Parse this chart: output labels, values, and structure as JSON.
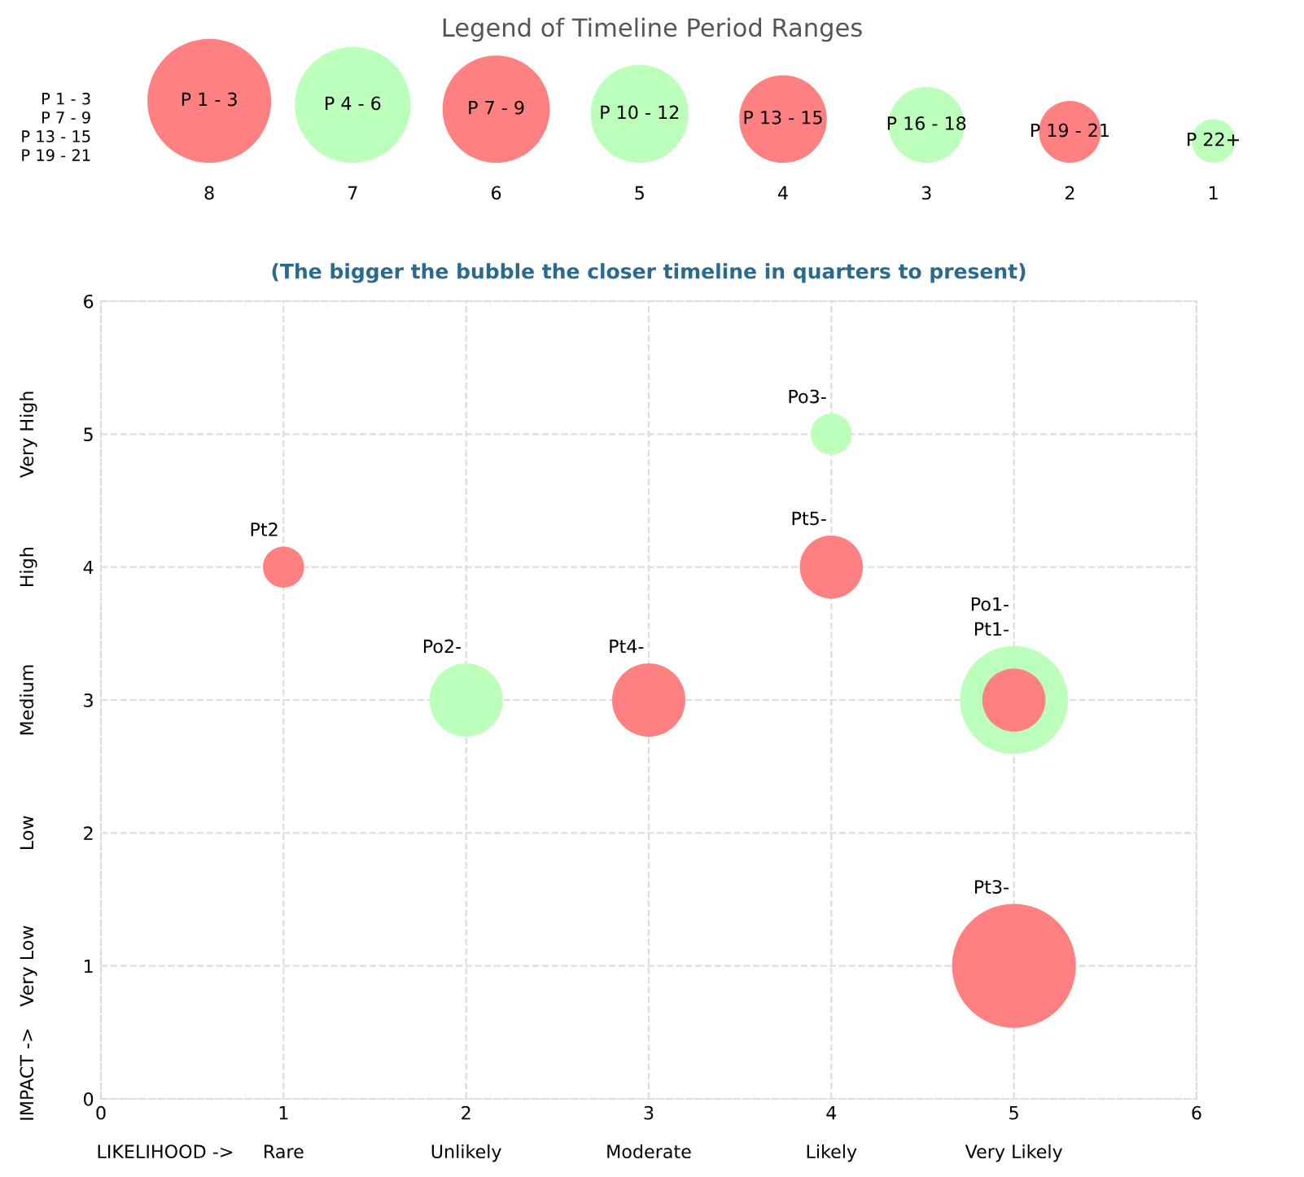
{
  "chart_data": [
    {
      "type": "other",
      "title": "Legend of Timeline Period Ranges",
      "categories": [
        "P 1 - 3",
        "P 4 - 6",
        "P 7 - 9",
        "P 10 - 12",
        "P 13 - 15",
        "P 16 - 18",
        "P 19 - 21",
        "P 22+"
      ],
      "values": [
        8,
        7,
        6,
        5,
        4,
        3,
        2,
        1
      ],
      "colors": [
        "#ff8080",
        "#bbffbb",
        "#ff8080",
        "#bbffbb",
        "#ff8080",
        "#bbffbb",
        "#ff8080",
        "#bbffbb"
      ],
      "data_labels": true,
      "annotations": [
        "P 1 - 3",
        "P 7 - 9",
        "P 13 - 15",
        "P 19 - 21"
      ]
    },
    {
      "type": "bubble",
      "title": "(The bigger the bubble the closer timeline in quarters to present)",
      "xlabel": "LIKELIHOOD ->",
      "ylabel": "IMPACT ->",
      "series": [
        {
          "color": "#bbffbb",
          "x": [
            4,
            2,
            5
          ],
          "values": [
            5,
            3,
            3
          ],
          "sizes": [
            0.11,
            0.35,
            0.76
          ]
        },
        {
          "color": "#ff8080",
          "x": [
            1,
            4,
            3,
            5,
            5
          ],
          "values": [
            4,
            4,
            3,
            3,
            1
          ],
          "sizes": [
            0.11,
            0.26,
            0.35,
            0.26,
            1
          ]
        }
      ],
      "xlim": [
        0,
        6
      ],
      "xticks": [
        0,
        1,
        2,
        3,
        4,
        5,
        6
      ],
      "ylim": [
        0,
        6
      ],
      "yticks": [
        0,
        1,
        2,
        3,
        4,
        5,
        6
      ],
      "annotations": [
        "Po3-",
        "Po2-",
        "Po1-",
        "Pt2",
        "Pt5-",
        "Pt4-",
        "Pt1-",
        "Pt3-",
        "Rare",
        "Unlikely",
        "Moderate",
        "Likely",
        "Very Likely",
        "Very Low",
        "Low",
        "Medium",
        "High",
        "Very High"
      ],
      "grid": true
    }
  ]
}
